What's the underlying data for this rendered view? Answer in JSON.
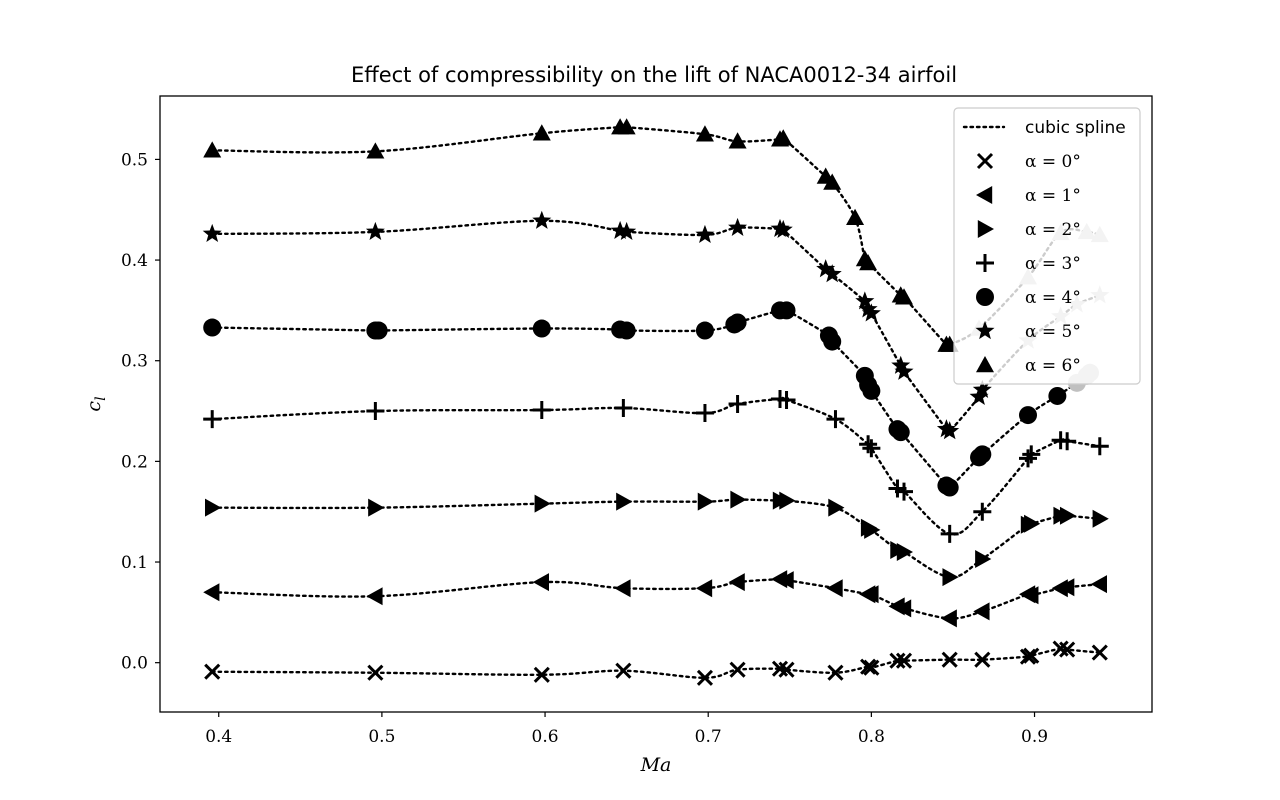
{
  "chart_data": {
    "type": "line",
    "title": "Effect of compressibility on the lift of NACA0012-34 airfoil",
    "xlabel": "Ma",
    "ylabel": "c_l",
    "xlim": [
      0.364,
      0.972
    ],
    "ylim": [
      -0.049,
      0.563
    ],
    "xticks": [
      0.4,
      0.5,
      0.6,
      0.7,
      0.8,
      0.9
    ],
    "xtick_labels": [
      "0.4",
      "0.5",
      "0.6",
      "0.7",
      "0.8",
      "0.9"
    ],
    "yticks": [
      0.0,
      0.1,
      0.2,
      0.3,
      0.4,
      0.5
    ],
    "ytick_labels": [
      "0.0",
      "0.1",
      "0.2",
      "0.3",
      "0.4",
      "0.5"
    ],
    "grid": false,
    "legend_position": "top-right",
    "legend": {
      "spline_label": "cubic spline",
      "alpha_symbol": "α",
      "equals": " = "
    },
    "colors": {
      "marker": "#000000",
      "marker_outside": "#c0c0c0",
      "line": "#000000"
    },
    "series": [
      {
        "name": "α = 0°",
        "marker": "x",
        "x": [
          0.396,
          0.496,
          0.598,
          0.648,
          0.698,
          0.718,
          0.744,
          0.748,
          0.778,
          0.798,
          0.8,
          0.816,
          0.82,
          0.848,
          0.868,
          0.896,
          0.898,
          0.916,
          0.92,
          0.94
        ],
        "y": [
          -0.009,
          -0.01,
          -0.012,
          -0.008,
          -0.015,
          -0.007,
          -0.006,
          -0.007,
          -0.01,
          -0.004,
          -0.005,
          0.002,
          0.002,
          0.003,
          0.003,
          0.006,
          0.007,
          0.014,
          0.013,
          0.01
        ]
      },
      {
        "name": "α = 1°",
        "marker": "triangle-left",
        "x": [
          0.396,
          0.496,
          0.598,
          0.648,
          0.698,
          0.718,
          0.744,
          0.748,
          0.778,
          0.798,
          0.8,
          0.816,
          0.82,
          0.848,
          0.868,
          0.896,
          0.898,
          0.916,
          0.92,
          0.94
        ],
        "y": [
          0.07,
          0.066,
          0.08,
          0.074,
          0.074,
          0.08,
          0.083,
          0.082,
          0.074,
          0.068,
          0.068,
          0.056,
          0.054,
          0.044,
          0.051,
          0.068,
          0.067,
          0.074,
          0.075,
          0.078
        ]
      },
      {
        "name": "α = 2°",
        "marker": "triangle-right",
        "x": [
          0.396,
          0.496,
          0.598,
          0.648,
          0.698,
          0.718,
          0.744,
          0.748,
          0.778,
          0.798,
          0.8,
          0.816,
          0.82,
          0.848,
          0.868,
          0.896,
          0.898,
          0.916,
          0.92,
          0.94
        ],
        "y": [
          0.154,
          0.154,
          0.158,
          0.16,
          0.16,
          0.162,
          0.161,
          0.161,
          0.154,
          0.134,
          0.132,
          0.112,
          0.11,
          0.085,
          0.103,
          0.137,
          0.138,
          0.146,
          0.146,
          0.143
        ]
      },
      {
        "name": "α = 3°",
        "marker": "plus",
        "x": [
          0.396,
          0.496,
          0.598,
          0.648,
          0.698,
          0.718,
          0.744,
          0.748,
          0.778,
          0.798,
          0.8,
          0.816,
          0.82,
          0.848,
          0.868,
          0.896,
          0.898,
          0.916,
          0.92,
          0.94
        ],
        "y": [
          0.242,
          0.25,
          0.251,
          0.253,
          0.248,
          0.257,
          0.262,
          0.261,
          0.242,
          0.217,
          0.213,
          0.173,
          0.17,
          0.128,
          0.15,
          0.203,
          0.207,
          0.221,
          0.22,
          0.215
        ]
      },
      {
        "name": "α = 4°",
        "marker": "circle",
        "x": [
          0.396,
          0.496,
          0.498,
          0.598,
          0.646,
          0.65,
          0.698,
          0.716,
          0.718,
          0.744,
          0.748,
          0.774,
          0.776,
          0.796,
          0.798,
          0.8,
          0.816,
          0.818,
          0.846,
          0.848,
          0.866,
          0.868,
          0.896,
          0.914,
          0.926,
          0.932,
          0.934
        ],
        "y": [
          0.333,
          0.33,
          0.33,
          0.332,
          0.331,
          0.33,
          0.33,
          0.336,
          0.338,
          0.35,
          0.35,
          0.325,
          0.319,
          0.285,
          0.276,
          0.27,
          0.232,
          0.229,
          0.176,
          0.174,
          0.204,
          0.207,
          0.246,
          0.265,
          0.278,
          0.285,
          0.288
        ]
      },
      {
        "name": "α = 5°",
        "marker": "star",
        "x": [
          0.396,
          0.496,
          0.598,
          0.646,
          0.65,
          0.698,
          0.718,
          0.744,
          0.746,
          0.772,
          0.776,
          0.796,
          0.798,
          0.8,
          0.818,
          0.82,
          0.846,
          0.848,
          0.866,
          0.868,
          0.896,
          0.916,
          0.926,
          0.94
        ],
        "y": [
          0.426,
          0.428,
          0.439,
          0.429,
          0.428,
          0.425,
          0.432,
          0.431,
          0.43,
          0.391,
          0.386,
          0.359,
          0.351,
          0.347,
          0.295,
          0.289,
          0.232,
          0.23,
          0.264,
          0.271,
          0.32,
          0.344,
          0.356,
          0.365
        ]
      },
      {
        "name": "α = 6°",
        "marker": "triangle-up",
        "x": [
          0.396,
          0.496,
          0.598,
          0.646,
          0.65,
          0.698,
          0.718,
          0.744,
          0.746,
          0.772,
          0.776,
          0.79,
          0.796,
          0.798,
          0.818,
          0.82,
          0.846,
          0.848,
          0.866,
          0.896,
          0.916,
          0.932,
          0.94
        ],
        "y": [
          0.509,
          0.508,
          0.526,
          0.532,
          0.532,
          0.525,
          0.518,
          0.52,
          0.521,
          0.483,
          0.477,
          0.442,
          0.401,
          0.397,
          0.365,
          0.363,
          0.316,
          0.316,
          0.332,
          0.383,
          0.427,
          0.428,
          0.425
        ]
      }
    ]
  }
}
